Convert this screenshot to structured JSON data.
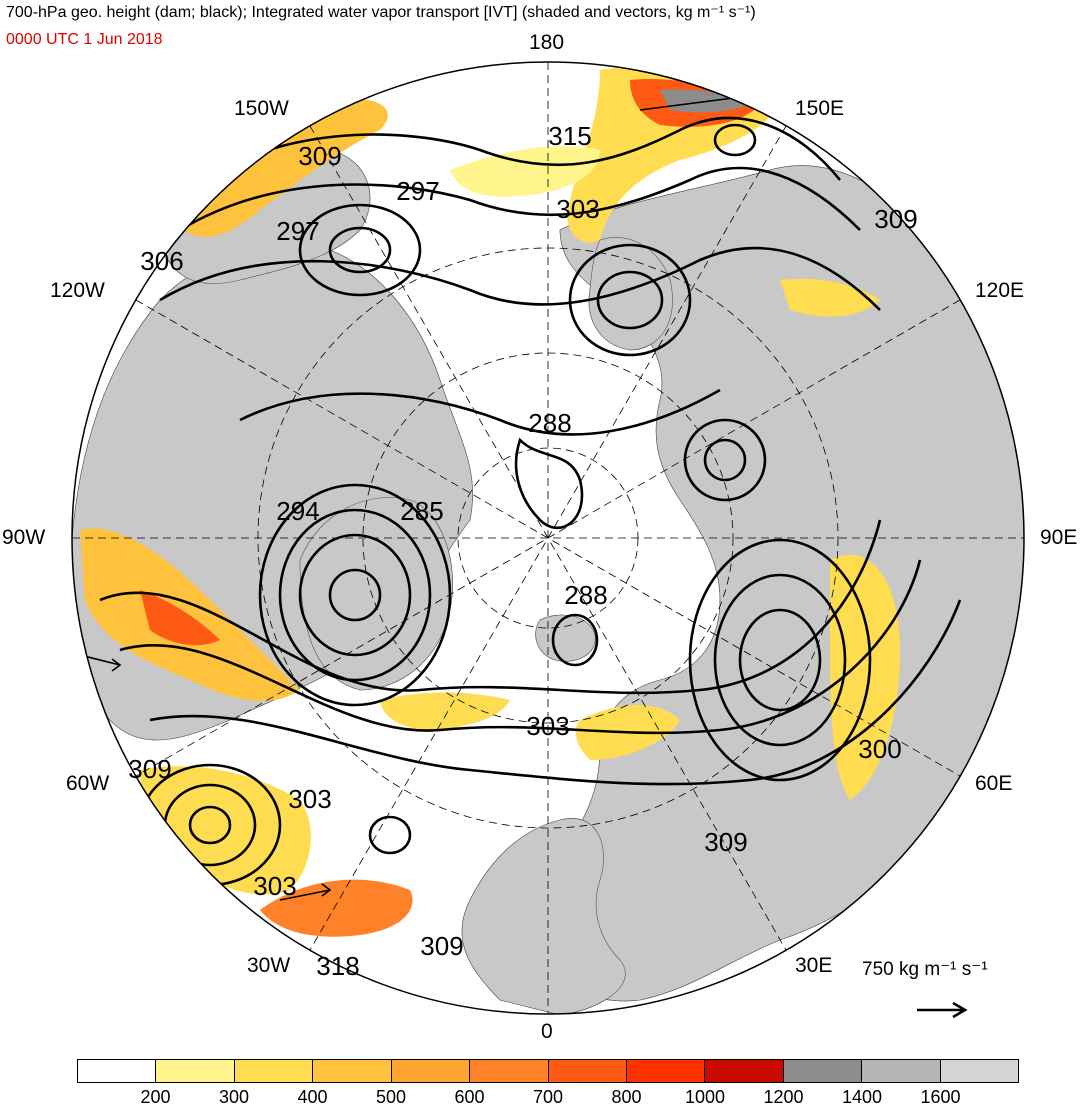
{
  "header": {
    "title": "700-hPa geo. height (dam; black); Integrated water vapor transport [IVT] (shaded and vectors, kg m⁻¹ s⁻¹)",
    "subtitle": "0000 UTC 1 Jun 2018"
  },
  "map": {
    "projection": "north-polar-stereographic",
    "longitude_labels": {
      "top": "180",
      "bottom": "0",
      "left": "90W",
      "right": "90E",
      "upper_left": "150W",
      "upper_right": "150E",
      "mid_left": "120W",
      "mid_right": "120E",
      "lower_left": "60W",
      "lower_right": "60E",
      "bottom_left": "30W",
      "bottom_right": "30E"
    },
    "contour_labels": [
      "315",
      "297",
      "309",
      "297",
      "306",
      "303",
      "309",
      "288",
      "294",
      "285",
      "288",
      "303",
      "300",
      "309",
      "303",
      "309",
      "303",
      "318",
      "309"
    ],
    "colors": {
      "land": "#c8c8c8",
      "ocean": "#ffffff",
      "contour": "#000000"
    }
  },
  "reference_vector": {
    "label": "750 kg m⁻¹ s⁻¹"
  },
  "colorbar": {
    "ticks": [
      "200",
      "300",
      "400",
      "500",
      "600",
      "700",
      "800",
      "1000",
      "1200",
      "1400",
      "1600"
    ],
    "colors": [
      "#ffffff",
      "#fff58c",
      "#ffdc50",
      "#ffc23c",
      "#ffa532",
      "#ff8228",
      "#ff5a14",
      "#ff3200",
      "#c80a00",
      "#8c8c8c",
      "#b4b4b4",
      "#d4d4d4"
    ]
  }
}
